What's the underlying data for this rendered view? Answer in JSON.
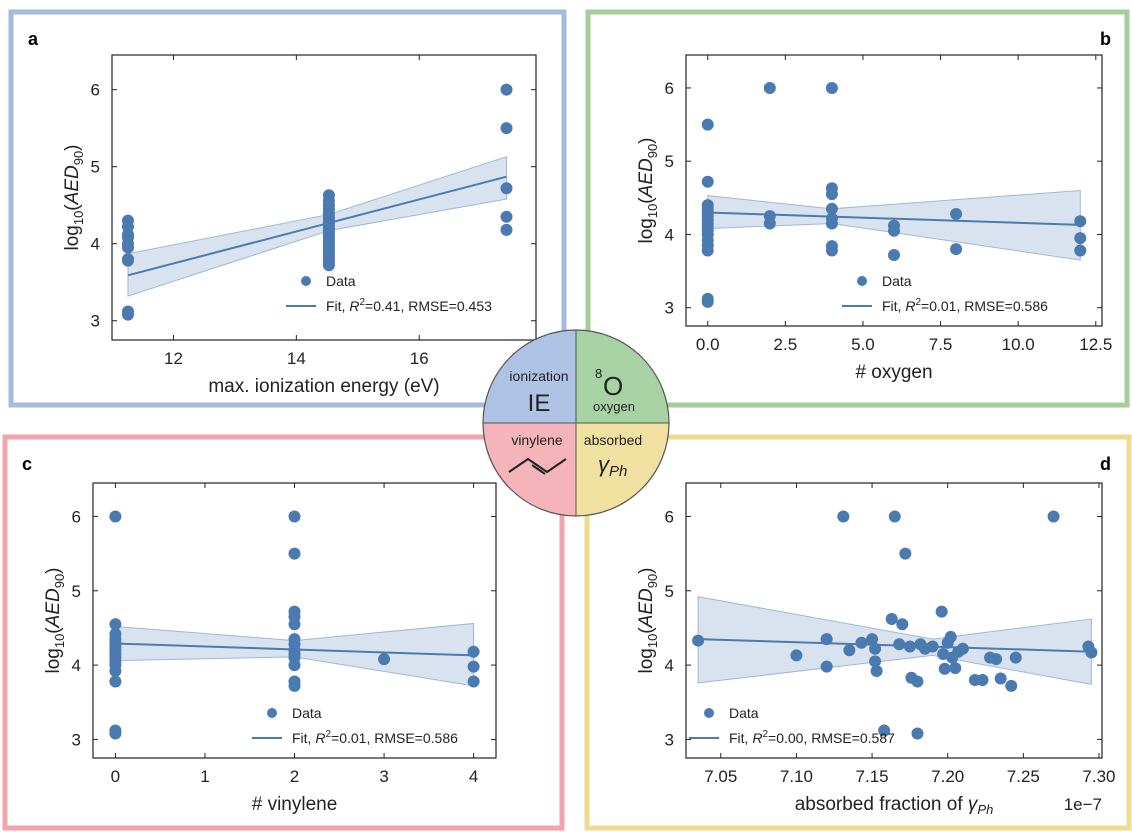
{
  "colors": {
    "data": "#4a7ab0",
    "fit": "#4a7ab0",
    "band": "#c8d7e8",
    "frame_a": "#a3bbdd",
    "frame_b": "#a6cc9a",
    "frame_c": "#f2a3ab",
    "frame_d": "#eedc8c",
    "quad_ie": "#aec3e4",
    "quad_oxygen": "#a8d1a4",
    "quad_vinylene": "#f5b4b9",
    "quad_absorbed": "#f0e1a0"
  },
  "center_icon": {
    "ie_caption": "ionization",
    "ie_label": "IE",
    "oxygen_superscript": "8",
    "oxygen_letter": "O",
    "oxygen_caption": "oxygen",
    "vinylene_caption": "vinylene",
    "absorbed_caption": "absorbed",
    "absorbed_symbol": "γ",
    "absorbed_subscript": "Ph"
  },
  "chart_data": [
    {
      "panel": "a",
      "type": "scatter",
      "xlabel": "max. ionization energy (eV)",
      "ylabel": "log10(AED90)",
      "xlim": [
        11.0,
        17.9
      ],
      "ylim": [
        2.75,
        6.45
      ],
      "xticks": [
        12,
        14,
        16
      ],
      "yticks": [
        3,
        4,
        5,
        6
      ],
      "legend": {
        "data": "Data",
        "fit_prefix": "Fit, ",
        "fit_r2": "=0.41, RMSE=0.453"
      },
      "points": [
        [
          11.26,
          3.08
        ],
        [
          11.26,
          3.12
        ],
        [
          11.26,
          3.78
        ],
        [
          11.26,
          3.8
        ],
        [
          11.26,
          3.95
        ],
        [
          11.26,
          4.0
        ],
        [
          11.26,
          4.08
        ],
        [
          11.26,
          4.12
        ],
        [
          11.26,
          4.22
        ],
        [
          11.26,
          4.3
        ],
        [
          14.53,
          3.72
        ],
        [
          14.53,
          3.76
        ],
        [
          14.53,
          3.8
        ],
        [
          14.53,
          3.84
        ],
        [
          14.53,
          3.88
        ],
        [
          14.53,
          3.92
        ],
        [
          14.53,
          3.96
        ],
        [
          14.53,
          4.0
        ],
        [
          14.53,
          4.04
        ],
        [
          14.53,
          4.08
        ],
        [
          14.53,
          4.12
        ],
        [
          14.53,
          4.16
        ],
        [
          14.53,
          4.2
        ],
        [
          14.53,
          4.24
        ],
        [
          14.53,
          4.28
        ],
        [
          14.53,
          4.32
        ],
        [
          14.53,
          4.36
        ],
        [
          14.53,
          4.4
        ],
        [
          14.53,
          4.45
        ],
        [
          14.53,
          4.5
        ],
        [
          14.53,
          4.56
        ],
        [
          14.53,
          4.63
        ],
        [
          17.42,
          4.18
        ],
        [
          17.42,
          4.35
        ],
        [
          17.42,
          4.72
        ],
        [
          17.42,
          5.5
        ],
        [
          17.42,
          6.0
        ]
      ],
      "fit": {
        "x": [
          11.26,
          17.42
        ],
        "y": [
          3.59,
          4.87
        ]
      },
      "band": {
        "x": [
          11.26,
          14.53,
          17.42
        ],
        "upper": [
          3.87,
          4.38,
          5.13
        ],
        "lower": [
          3.32,
          4.17,
          4.58
        ]
      }
    },
    {
      "panel": "b",
      "type": "scatter",
      "xlabel": "# oxygen",
      "ylabel": "log10(AED90)",
      "xlim": [
        -0.7,
        12.7
      ],
      "ylim": [
        2.75,
        6.45
      ],
      "xticks": [
        "0.0",
        "2.5",
        "5.0",
        "7.5",
        "10.0",
        "12.5"
      ],
      "xtick_values": [
        0,
        2.5,
        5,
        7.5,
        10,
        12.5
      ],
      "yticks": [
        3,
        4,
        5,
        6
      ],
      "legend": {
        "data": "Data",
        "fit_prefix": "Fit, ",
        "fit_r2": "=0.01, RMSE=0.586"
      },
      "points": [
        [
          0,
          3.08
        ],
        [
          0,
          3.12
        ],
        [
          0,
          3.78
        ],
        [
          0,
          3.85
        ],
        [
          0,
          3.92
        ],
        [
          0,
          4.0
        ],
        [
          0,
          4.05
        ],
        [
          0,
          4.1
        ],
        [
          0,
          4.15
        ],
        [
          0,
          4.2
        ],
        [
          0,
          4.25
        ],
        [
          0,
          4.3
        ],
        [
          0,
          4.35
        ],
        [
          0,
          4.4
        ],
        [
          0,
          4.72
        ],
        [
          0,
          5.5
        ],
        [
          2,
          4.15
        ],
        [
          2,
          4.25
        ],
        [
          2,
          6.0
        ],
        [
          4,
          3.78
        ],
        [
          4,
          3.84
        ],
        [
          4,
          4.15
        ],
        [
          4,
          4.22
        ],
        [
          4,
          4.35
        ],
        [
          4,
          4.55
        ],
        [
          4,
          4.63
        ],
        [
          4,
          6.0
        ],
        [
          6,
          3.72
        ],
        [
          6,
          4.05
        ],
        [
          6,
          4.12
        ],
        [
          8,
          3.8
        ],
        [
          8,
          4.28
        ],
        [
          12,
          3.78
        ],
        [
          12,
          3.95
        ],
        [
          12,
          4.18
        ]
      ],
      "fit": {
        "x": [
          0,
          12
        ],
        "y": [
          4.3,
          4.13
        ]
      },
      "band": {
        "x": [
          0,
          4,
          12
        ],
        "upper": [
          4.53,
          4.35,
          4.6
        ],
        "lower": [
          4.08,
          4.15,
          3.65
        ]
      }
    },
    {
      "panel": "c",
      "type": "scatter",
      "xlabel": "# vinylene",
      "ylabel": "log10(AED90)",
      "xlim": [
        -0.25,
        4.25
      ],
      "ylim": [
        2.75,
        6.45
      ],
      "xticks": [
        0,
        1,
        2,
        3,
        4
      ],
      "yticks": [
        3,
        4,
        5,
        6
      ],
      "legend": {
        "data": "Data",
        "fit_prefix": "Fit, ",
        "fit_r2": "=0.01, RMSE=0.586"
      },
      "points": [
        [
          0,
          3.08
        ],
        [
          0,
          3.12
        ],
        [
          0,
          3.78
        ],
        [
          0,
          3.92
        ],
        [
          0,
          4.0
        ],
        [
          0,
          4.05
        ],
        [
          0,
          4.1
        ],
        [
          0,
          4.15
        ],
        [
          0,
          4.2
        ],
        [
          0,
          4.25
        ],
        [
          0,
          4.3
        ],
        [
          0,
          4.35
        ],
        [
          0,
          4.42
        ],
        [
          0,
          4.55
        ],
        [
          0,
          6.0
        ],
        [
          2,
          3.72
        ],
        [
          2,
          3.78
        ],
        [
          2,
          4.0
        ],
        [
          2,
          4.1
        ],
        [
          2,
          4.15
        ],
        [
          2,
          4.2
        ],
        [
          2,
          4.28
        ],
        [
          2,
          4.35
        ],
        [
          2,
          4.55
        ],
        [
          2,
          4.65
        ],
        [
          2,
          4.72
        ],
        [
          2,
          5.5
        ],
        [
          2,
          6.0
        ],
        [
          3,
          4.08
        ],
        [
          4,
          3.78
        ],
        [
          4,
          3.98
        ],
        [
          4,
          4.18
        ]
      ],
      "fit": {
        "x": [
          0,
          4
        ],
        "y": [
          4.29,
          4.13
        ]
      },
      "band": {
        "x": [
          0,
          2,
          4
        ],
        "upper": [
          4.52,
          4.33,
          4.56
        ],
        "lower": [
          4.06,
          4.11,
          3.72
        ]
      }
    },
    {
      "panel": "d",
      "type": "scatter",
      "xlabel": "absorbed fraction of γPh",
      "xlabel_main": "absorbed fraction of ",
      "xlabel_sym": "γ",
      "xlabel_sub": "Ph",
      "x_multiplier": "1e−7",
      "ylabel": "log10(AED90)",
      "xlim": [
        7.027,
        7.302
      ],
      "ylim": [
        2.75,
        6.45
      ],
      "xticks": [
        "7.05",
        "7.10",
        "7.15",
        "7.20",
        "7.25",
        "7.30"
      ],
      "xtick_values": [
        7.05,
        7.1,
        7.15,
        7.2,
        7.25,
        7.3
      ],
      "yticks": [
        3,
        4,
        5,
        6
      ],
      "legend": {
        "data": "Data",
        "fit_prefix": "Fit, ",
        "fit_r2": "=0.00, RMSE=0.587"
      },
      "points": [
        [
          7.035,
          4.33
        ],
        [
          7.1,
          4.13
        ],
        [
          7.12,
          4.35
        ],
        [
          7.12,
          3.98
        ],
        [
          7.131,
          6.0
        ],
        [
          7.135,
          4.2
        ],
        [
          7.143,
          4.3
        ],
        [
          7.15,
          4.35
        ],
        [
          7.152,
          4.22
        ],
        [
          7.152,
          4.05
        ],
        [
          7.153,
          3.92
        ],
        [
          7.158,
          3.12
        ],
        [
          7.163,
          4.62
        ],
        [
          7.165,
          6.0
        ],
        [
          7.168,
          4.28
        ],
        [
          7.17,
          4.55
        ],
        [
          7.172,
          5.5
        ],
        [
          7.175,
          4.25
        ],
        [
          7.176,
          3.83
        ],
        [
          7.18,
          3.78
        ],
        [
          7.18,
          3.08
        ],
        [
          7.182,
          4.28
        ],
        [
          7.185,
          4.22
        ],
        [
          7.19,
          4.25
        ],
        [
          7.196,
          4.72
        ],
        [
          7.197,
          4.15
        ],
        [
          7.198,
          3.95
        ],
        [
          7.2,
          4.3
        ],
        [
          7.202,
          4.38
        ],
        [
          7.203,
          4.1
        ],
        [
          7.205,
          3.96
        ],
        [
          7.207,
          4.18
        ],
        [
          7.21,
          4.22
        ],
        [
          7.218,
          3.8
        ],
        [
          7.223,
          3.8
        ],
        [
          7.228,
          4.1
        ],
        [
          7.232,
          4.08
        ],
        [
          7.235,
          3.82
        ],
        [
          7.242,
          3.72
        ],
        [
          7.245,
          4.1
        ],
        [
          7.27,
          6.0
        ],
        [
          7.293,
          4.25
        ],
        [
          7.295,
          4.17
        ]
      ],
      "fit": {
        "x": [
          7.035,
          7.295
        ],
        "y": [
          4.35,
          4.18
        ]
      },
      "band": {
        "x": [
          7.035,
          7.19,
          7.295
        ],
        "upper": [
          4.92,
          4.35,
          4.62
        ],
        "lower": [
          3.76,
          4.13,
          3.74
        ]
      }
    }
  ]
}
